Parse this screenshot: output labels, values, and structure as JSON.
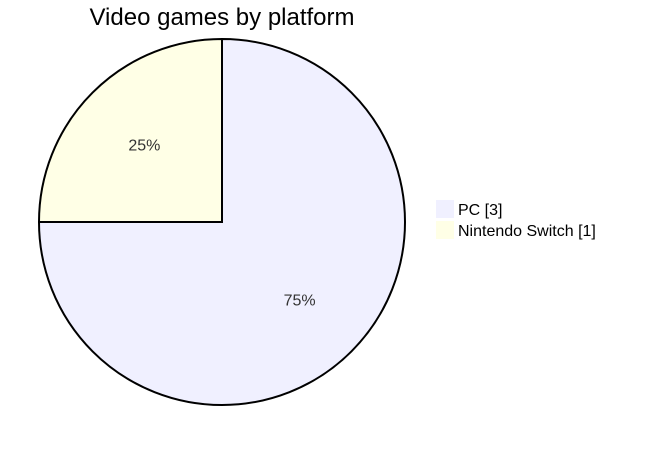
{
  "chart_data": {
    "type": "pie",
    "title": "Video games by platform",
    "slices": [
      {
        "label": "PC",
        "value": 3,
        "percent_label": "75%",
        "legend_label": "PC [3]",
        "color": "#f0f0ff"
      },
      {
        "label": "Nintendo Switch",
        "value": 1,
        "percent_label": "25%",
        "legend_label": "Nintendo Switch [1]",
        "color": "#ffffe6"
      }
    ],
    "stroke_color": "#000000",
    "legend_position": "right"
  }
}
